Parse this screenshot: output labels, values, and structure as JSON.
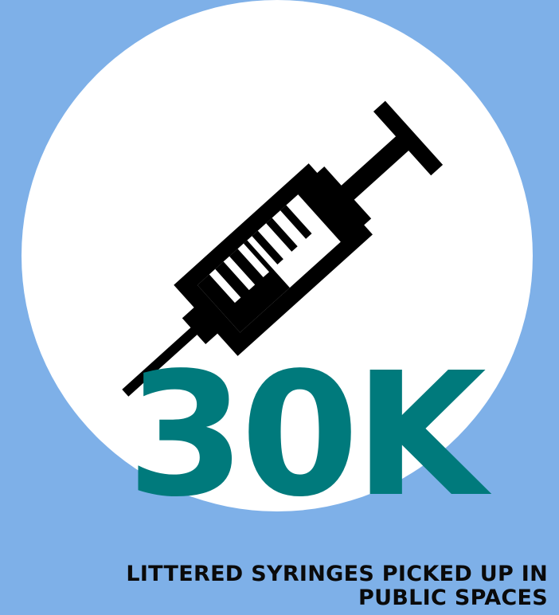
{
  "stat": {
    "value": "30K",
    "caption": "LITTERED SYRINGES PICKED UP IN PUBLIC SPACES"
  },
  "icon": "syringe-icon",
  "colors": {
    "background": "#7eb0e8",
    "circle": "#ffffff",
    "stat_value": "#007a7c",
    "caption": "#0a0a0a",
    "icon": "#000000"
  }
}
